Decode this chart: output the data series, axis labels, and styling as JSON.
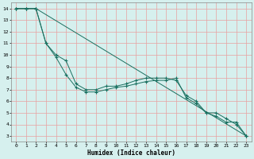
{
  "title": "",
  "xlabel": "Humidex (Indice chaleur)",
  "bg_color": "#d6f0ee",
  "grid_color": "#e8a0a0",
  "line_color": "#1a7060",
  "xlim": [
    -0.5,
    23.5
  ],
  "ylim": [
    2.5,
    14.5
  ],
  "xticks": [
    0,
    1,
    2,
    3,
    4,
    5,
    6,
    7,
    8,
    9,
    10,
    11,
    12,
    13,
    14,
    15,
    16,
    17,
    18,
    19,
    20,
    21,
    22,
    23
  ],
  "yticks": [
    3,
    4,
    5,
    6,
    7,
    8,
    9,
    10,
    11,
    12,
    13,
    14
  ],
  "line1_x": [
    0,
    1,
    2,
    3,
    4,
    5,
    6,
    7,
    8,
    9,
    10,
    11,
    12,
    13,
    14,
    15,
    16,
    17,
    18,
    19,
    20,
    21,
    22,
    23
  ],
  "line1_y": [
    14,
    14,
    14,
    11,
    10,
    9.5,
    7.5,
    7.0,
    7.0,
    7.3,
    7.3,
    7.5,
    7.8,
    8.0,
    8.0,
    8.0,
    7.8,
    6.5,
    6.0,
    5.0,
    5.0,
    4.5,
    4.0,
    3.0
  ],
  "line2_x": [
    0,
    1,
    2,
    3,
    4,
    5,
    6,
    7,
    8,
    9,
    10,
    11,
    12,
    13,
    14,
    15,
    16,
    17,
    18,
    19,
    20,
    21,
    22,
    23
  ],
  "line2_y": [
    14,
    14,
    14,
    11,
    9.8,
    8.3,
    7.2,
    6.8,
    6.8,
    7.0,
    7.2,
    7.3,
    7.5,
    7.7,
    7.8,
    7.8,
    8.0,
    6.3,
    5.8,
    5.0,
    4.7,
    4.2,
    4.2,
    3.0
  ],
  "line3_x": [
    0,
    1,
    2,
    23
  ],
  "line3_y": [
    14,
    14,
    14,
    3.0
  ]
}
